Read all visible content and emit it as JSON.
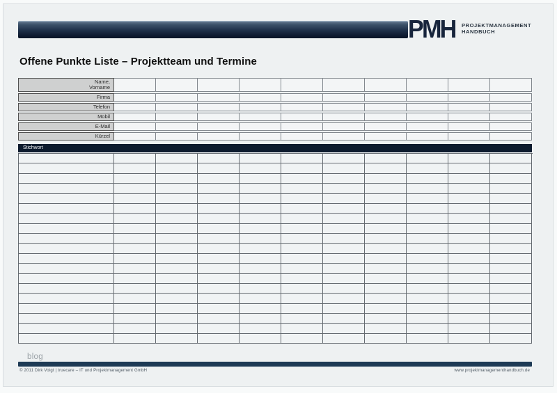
{
  "logo": {
    "acronym": "PMH",
    "name": "PROJEKTMANAGEMENT\nHANDBUCH"
  },
  "title": "Offene Punkte Liste – Projektteam und Termine",
  "contact_block": {
    "row_labels": [
      "Name,\nVorname",
      "Firma",
      "Telefon",
      "Mobil",
      "E-Mail",
      "Kürzel"
    ],
    "data_columns": 10,
    "cell_values": []
  },
  "keyword_row": {
    "label": "Stichwort"
  },
  "grid": {
    "rows": 19,
    "data_columns": 10,
    "values": []
  },
  "footer": {
    "blog_text": "blog",
    "copyright": "© 2011  Dirk Voigt | truecare – IT und Projektmanagement GmbH",
    "website": "www.projektmanagementhandbuch.de"
  },
  "colors": {
    "page_background": "#eef1f2",
    "brand_bar_gradient_top": "#6b8097",
    "brand_bar_gradient_bottom": "#0a1527",
    "logo_text": "#17253c",
    "label_cell_background": "#cfd0d0",
    "keyword_bar_background": "#0d1b2e",
    "footer_bar": "#1d3a55"
  }
}
